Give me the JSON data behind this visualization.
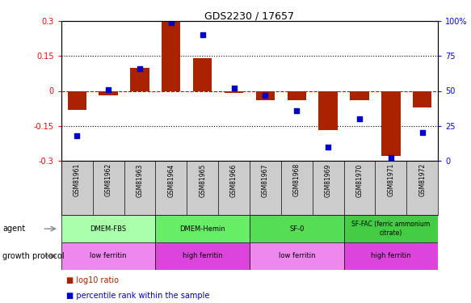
{
  "title": "GDS2230 / 17657",
  "samples": [
    "GSM81961",
    "GSM81962",
    "GSM81963",
    "GSM81964",
    "GSM81965",
    "GSM81966",
    "GSM81967",
    "GSM81968",
    "GSM81969",
    "GSM81970",
    "GSM81971",
    "GSM81972"
  ],
  "log10_ratio": [
    -0.08,
    -0.02,
    0.1,
    0.3,
    0.14,
    -0.01,
    -0.04,
    -0.04,
    -0.17,
    -0.04,
    -0.28,
    -0.07
  ],
  "percentile_rank": [
    18,
    51,
    66,
    99,
    90,
    52,
    47,
    36,
    10,
    30,
    2,
    20
  ],
  "bar_color": "#aa2200",
  "dot_color": "#0000cc",
  "ylim": [
    -0.3,
    0.3
  ],
  "y2lim": [
    0,
    100
  ],
  "yticks": [
    -0.3,
    -0.15,
    0.0,
    0.15,
    0.3
  ],
  "y2ticks": [
    0,
    25,
    50,
    75,
    100
  ],
  "ytick_labels": [
    "-0.3",
    "-0.15",
    "0",
    "0.15",
    "0.3"
  ],
  "y2tick_labels": [
    "0",
    "25",
    "50",
    "75",
    "100%"
  ],
  "agent_groups": [
    {
      "label": "DMEM-FBS",
      "start": 0,
      "end": 3,
      "color": "#aaffaa"
    },
    {
      "label": "DMEM-Hemin",
      "start": 3,
      "end": 6,
      "color": "#66ee66"
    },
    {
      "label": "SF-0",
      "start": 6,
      "end": 9,
      "color": "#55dd55"
    },
    {
      "label": "SF-FAC (ferric ammonium\ncitrate)",
      "start": 9,
      "end": 12,
      "color": "#44cc44"
    }
  ],
  "growth_groups": [
    {
      "label": "low ferritin",
      "start": 0,
      "end": 3,
      "color": "#ee88ee"
    },
    {
      "label": "high ferritin",
      "start": 3,
      "end": 6,
      "color": "#dd44dd"
    },
    {
      "label": "low ferritin",
      "start": 6,
      "end": 9,
      "color": "#ee88ee"
    },
    {
      "label": "high ferritin",
      "start": 9,
      "end": 12,
      "color": "#dd44dd"
    }
  ]
}
